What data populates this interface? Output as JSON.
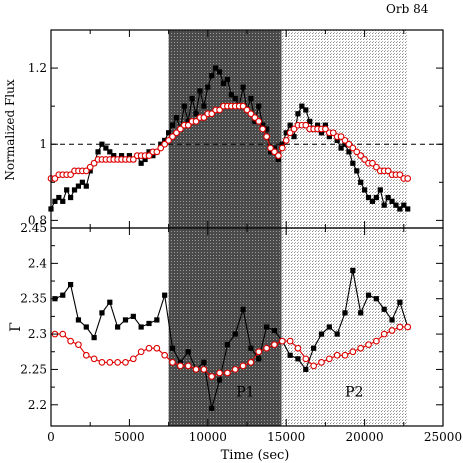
{
  "header_label": "Orb 84",
  "chart_data": [
    {
      "type": "line",
      "ylabel": "Normalized Flux",
      "ylim": [
        0.78,
        1.3
      ],
      "xlim": [
        0,
        25000
      ],
      "y_ticks": [
        0.8,
        1,
        1.2
      ],
      "y_tick_labels": [
        "0.8",
        "1",
        "1.2"
      ],
      "reference_line": 1.0,
      "series": [
        {
          "color": "#000000",
          "marker": "square-filled",
          "x": [
            0,
            250,
            500,
            750,
            1000,
            1250,
            1500,
            1750,
            2000,
            2250,
            2500,
            2750,
            3000,
            3250,
            3500,
            3750,
            4000,
            4250,
            4500,
            4750,
            5000,
            5250,
            5500,
            5750,
            6000,
            6250,
            6500,
            6750,
            7000,
            7250,
            7500,
            7750,
            8000,
            8250,
            8500,
            8750,
            9000,
            9250,
            9500,
            9750,
            10000,
            10250,
            10500,
            10750,
            11000,
            11250,
            11500,
            11750,
            12000,
            12250,
            12500,
            12750,
            13000,
            13250,
            13500,
            13750,
            14000,
            14250,
            14500,
            14750,
            15000,
            15250,
            15500,
            15750,
            16000,
            16250,
            16500,
            16750,
            17000,
            17250,
            17500,
            17750,
            18000,
            18250,
            18500,
            18750,
            19000,
            19250,
            19500,
            19750,
            20000,
            20250,
            20500,
            20750,
            21000,
            21250,
            21500,
            21750,
            22000,
            22250,
            22500,
            22750
          ],
          "y": [
            0.83,
            0.85,
            0.86,
            0.85,
            0.88,
            0.86,
            0.88,
            0.89,
            0.9,
            0.89,
            0.93,
            0.95,
            0.98,
            1.0,
            0.99,
            0.98,
            0.97,
            0.96,
            0.97,
            0.96,
            0.97,
            0.96,
            0.97,
            0.95,
            0.96,
            0.98,
            0.97,
            0.98,
            1.0,
            1.01,
            1.03,
            1.05,
            1.07,
            1.04,
            1.1,
            1.06,
            1.12,
            1.08,
            1.14,
            1.1,
            1.15,
            1.18,
            1.2,
            1.19,
            1.16,
            1.17,
            1.13,
            1.12,
            1.1,
            1.15,
            1.09,
            1.12,
            1.06,
            1.1,
            1.05,
            1.04,
            0.98,
            0.99,
            0.96,
            1.0,
            1.03,
            1.05,
            1.02,
            1.08,
            1.1,
            1.09,
            1.06,
            1.04,
            1.05,
            1.03,
            1.05,
            1.02,
            1.03,
            1.01,
            0.99,
            1.0,
            0.98,
            0.95,
            0.93,
            0.9,
            0.88,
            0.86,
            0.85,
            0.86,
            0.88,
            0.84,
            0.86,
            0.85,
            0.84,
            0.83,
            0.84,
            0.83
          ]
        },
        {
          "color": "#dd0000",
          "marker": "circle-open",
          "x": [
            0,
            250,
            500,
            750,
            1000,
            1250,
            1500,
            1750,
            2000,
            2250,
            2500,
            2750,
            3000,
            3250,
            3500,
            3750,
            4000,
            4250,
            4500,
            4750,
            5000,
            5250,
            5500,
            5750,
            6000,
            6250,
            6500,
            6750,
            7000,
            7250,
            7500,
            7750,
            8000,
            8250,
            8500,
            8750,
            9000,
            9250,
            9500,
            9750,
            10000,
            10250,
            10500,
            10750,
            11000,
            11250,
            11500,
            11750,
            12000,
            12250,
            12500,
            12750,
            13000,
            13250,
            13500,
            13750,
            14000,
            14250,
            14500,
            14750,
            15000,
            15250,
            15500,
            15750,
            16000,
            16250,
            16500,
            16750,
            17000,
            17250,
            17500,
            17750,
            18000,
            18250,
            18500,
            18750,
            19000,
            19250,
            19500,
            19750,
            20000,
            20250,
            20500,
            20750,
            21000,
            21250,
            21500,
            21750,
            22000,
            22250,
            22500,
            22750
          ],
          "y": [
            0.91,
            0.91,
            0.92,
            0.92,
            0.92,
            0.92,
            0.93,
            0.93,
            0.93,
            0.93,
            0.94,
            0.95,
            0.96,
            0.96,
            0.96,
            0.96,
            0.96,
            0.96,
            0.96,
            0.96,
            0.96,
            0.96,
            0.97,
            0.97,
            0.97,
            0.97,
            0.98,
            0.98,
            0.99,
            1.0,
            1.01,
            1.02,
            1.03,
            1.04,
            1.05,
            1.05,
            1.06,
            1.06,
            1.07,
            1.07,
            1.08,
            1.08,
            1.09,
            1.09,
            1.1,
            1.1,
            1.1,
            1.1,
            1.1,
            1.1,
            1.09,
            1.08,
            1.07,
            1.06,
            1.04,
            1.02,
            0.99,
            0.98,
            0.97,
            0.99,
            1.01,
            1.03,
            1.04,
            1.05,
            1.05,
            1.05,
            1.04,
            1.04,
            1.04,
            1.04,
            1.04,
            1.03,
            1.03,
            1.02,
            1.02,
            1.01,
            1.0,
            0.99,
            0.98,
            0.97,
            0.96,
            0.95,
            0.95,
            0.94,
            0.93,
            0.93,
            0.93,
            0.92,
            0.92,
            0.92,
            0.91,
            0.91
          ]
        }
      ]
    },
    {
      "type": "line",
      "xlabel": "Time (sec)",
      "ylabel": "Γ",
      "xlim": [
        0,
        25000
      ],
      "ylim": [
        2.17,
        2.45
      ],
      "x_ticks": [
        0,
        5000,
        10000,
        15000,
        20000,
        25000
      ],
      "x_tick_labels": [
        "0",
        "5000",
        "10000",
        "15000",
        "20000",
        "25000"
      ],
      "y_ticks": [
        2.2,
        2.25,
        2.3,
        2.35,
        2.4,
        2.45
      ],
      "y_tick_labels": [
        "2.2",
        "2.25",
        "2.3",
        "2.35",
        "2.4",
        "2.45"
      ],
      "series": [
        {
          "color": "#000000",
          "marker": "square-filled",
          "x": [
            250,
            750,
            1250,
            1750,
            2250,
            2750,
            3250,
            3750,
            4250,
            4750,
            5250,
            5750,
            6250,
            6750,
            7250,
            7750,
            8250,
            8750,
            9250,
            9750,
            10250,
            10750,
            11250,
            11750,
            12250,
            12750,
            13250,
            13750,
            14250,
            14750,
            15250,
            15750,
            16250,
            16750,
            17250,
            17750,
            18250,
            18750,
            19250,
            19750,
            20250,
            20750,
            21250,
            21750,
            22250,
            22750
          ],
          "y": [
            2.35,
            2.355,
            2.37,
            2.32,
            2.31,
            2.295,
            2.33,
            2.345,
            2.31,
            2.32,
            2.325,
            2.31,
            2.315,
            2.32,
            2.355,
            2.28,
            2.26,
            2.275,
            2.25,
            2.26,
            2.195,
            2.235,
            2.285,
            2.3,
            2.335,
            2.28,
            2.265,
            2.31,
            2.305,
            2.29,
            2.27,
            2.265,
            2.25,
            2.28,
            2.3,
            2.31,
            2.3,
            2.33,
            2.39,
            2.33,
            2.355,
            2.35,
            2.335,
            2.32,
            2.345,
            2.31
          ]
        },
        {
          "color": "#dd0000",
          "marker": "circle-open",
          "x": [
            250,
            750,
            1250,
            1750,
            2250,
            2750,
            3250,
            3750,
            4250,
            4750,
            5250,
            5750,
            6250,
            6750,
            7250,
            7750,
            8250,
            8750,
            9250,
            9750,
            10250,
            10750,
            11250,
            11750,
            12250,
            12750,
            13250,
            13750,
            14250,
            14750,
            15250,
            15750,
            16250,
            16750,
            17250,
            17750,
            18250,
            18750,
            19250,
            19750,
            20250,
            20750,
            21250,
            21750,
            22250,
            22750
          ],
          "y": [
            2.3,
            2.3,
            2.29,
            2.285,
            2.27,
            2.265,
            2.26,
            2.26,
            2.26,
            2.26,
            2.265,
            2.275,
            2.28,
            2.28,
            2.27,
            2.26,
            2.255,
            2.255,
            2.25,
            2.25,
            2.24,
            2.245,
            2.245,
            2.25,
            2.255,
            2.26,
            2.275,
            2.28,
            2.285,
            2.29,
            2.29,
            2.28,
            2.265,
            2.255,
            2.26,
            2.265,
            2.27,
            2.27,
            2.275,
            2.28,
            2.285,
            2.29,
            2.3,
            2.305,
            2.31,
            2.31
          ]
        }
      ],
      "regions": [
        {
          "label": "P1",
          "x_start": 7500,
          "x_end": 14700,
          "style": "dark-stipple"
        },
        {
          "label": "P2",
          "x_start": 14700,
          "x_end": 22700,
          "style": "light-stipple"
        }
      ]
    }
  ]
}
